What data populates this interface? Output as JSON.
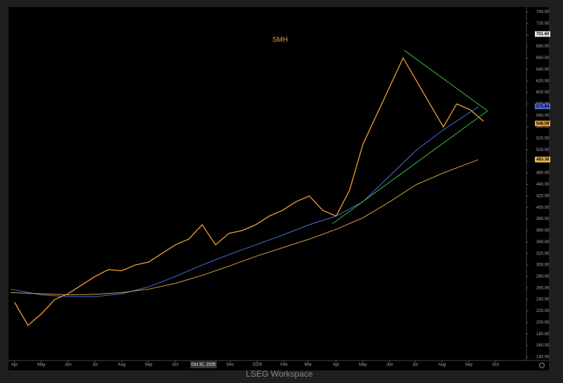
{
  "chart_data": {
    "type": "line",
    "title": "SMH",
    "footer": "LSEG Workspace",
    "xlim": [
      -0.15,
      19.1
    ],
    "ylim": [
      140,
      740
    ],
    "xticks": [
      {
        "value": 0,
        "label": "Apr"
      },
      {
        "value": 1,
        "label": "May"
      },
      {
        "value": 2,
        "label": "Jun"
      },
      {
        "value": 3,
        "label": "Jul"
      },
      {
        "value": 4,
        "label": "Aug"
      },
      {
        "value": 5,
        "label": "Sep"
      },
      {
        "value": 6,
        "label": "Oct"
      },
      {
        "value": 7.05,
        "label": "Oct 31, 2025"
      },
      {
        "value": 8.05,
        "label": "Dec"
      },
      {
        "value": 9.05,
        "label": "2026"
      },
      {
        "value": 10.05,
        "label": "Feb"
      },
      {
        "value": 10.95,
        "label": "Mar"
      },
      {
        "value": 12,
        "label": "Apr"
      },
      {
        "value": 13,
        "label": "May"
      },
      {
        "value": 14,
        "label": "Jun"
      },
      {
        "value": 14.95,
        "label": "Jul"
      },
      {
        "value": 15.95,
        "label": "Aug"
      },
      {
        "value": 16.95,
        "label": "Sep"
      },
      {
        "value": 17.95,
        "label": "Oct"
      }
    ],
    "yticks": [
      {
        "value": 140,
        "label": "140.00"
      },
      {
        "value": 160,
        "label": "160.00"
      },
      {
        "value": 180,
        "label": "180.00"
      },
      {
        "value": 200,
        "label": "200.00"
      },
      {
        "value": 220,
        "label": "220.00"
      },
      {
        "value": 240,
        "label": "240.00"
      },
      {
        "value": 260,
        "label": "260.00"
      },
      {
        "value": 280,
        "label": "280.00"
      },
      {
        "value": 300,
        "label": "300.00"
      },
      {
        "value": 320,
        "label": "320.00"
      },
      {
        "value": 340,
        "label": "340.00"
      },
      {
        "value": 360,
        "label": "360.00"
      },
      {
        "value": 380,
        "label": "380.00"
      },
      {
        "value": 400,
        "label": "400.00"
      },
      {
        "value": 420,
        "label": "420.00"
      },
      {
        "value": 440,
        "label": "440.00"
      },
      {
        "value": 460,
        "label": "460.00"
      },
      {
        "value": 480,
        "label": "480.00"
      },
      {
        "value": 500,
        "label": "500.00"
      },
      {
        "value": 520,
        "label": "520.00"
      },
      {
        "value": 540,
        "label": "540.00"
      },
      {
        "value": 560,
        "label": "560.00"
      },
      {
        "value": 580,
        "label": "580.00"
      },
      {
        "value": 600,
        "label": "600.00"
      },
      {
        "value": 620,
        "label": "620.00"
      },
      {
        "value": 640,
        "label": "640.00"
      },
      {
        "value": 660,
        "label": "660.00"
      },
      {
        "value": 680,
        "label": "680.00"
      },
      {
        "value": 700,
        "label": "700.00"
      },
      {
        "value": 720,
        "label": "720.00"
      },
      {
        "value": 740,
        "label": "740.00"
      }
    ],
    "series": [
      {
        "color": "#f0a030",
        "x": [
          0,
          0.5,
          1,
          1.5,
          2,
          2.5,
          3,
          3.5,
          4,
          4.5,
          5,
          5.5,
          6,
          6.5,
          7,
          7.5,
          8,
          8.5,
          9,
          9.5,
          10,
          10.5,
          11,
          11.5,
          12,
          12.5,
          13,
          13.5,
          14,
          14.5,
          15,
          15.5,
          16,
          16.5,
          17,
          17.5
        ],
        "values": [
          235,
          195,
          215,
          240,
          250,
          265,
          280,
          292,
          290,
          300,
          305,
          320,
          335,
          345,
          370,
          335,
          355,
          360,
          370,
          385,
          395,
          410,
          420,
          395,
          385,
          430,
          510,
          560,
          610,
          660,
          620,
          580,
          540,
          580,
          570,
          550
        ]
      },
      {
        "color": "#4a6ee0",
        "x": [
          -0.15,
          1,
          2,
          3,
          4,
          5,
          6,
          7,
          8,
          9,
          10,
          11,
          12,
          13,
          14,
          15,
          16,
          17.3
        ],
        "values": [
          258,
          248,
          245,
          245,
          250,
          262,
          280,
          300,
          318,
          335,
          352,
          370,
          385,
          410,
          455,
          500,
          535,
          575
        ]
      },
      {
        "color": "#d8a040",
        "x": [
          -0.15,
          1,
          2,
          3,
          4,
          5,
          6,
          7,
          8,
          9,
          10,
          11,
          12,
          13,
          14,
          15,
          16,
          17.3
        ],
        "values": [
          252,
          250,
          248,
          249,
          252,
          258,
          268,
          282,
          298,
          315,
          330,
          345,
          362,
          382,
          410,
          440,
          460,
          483
        ]
      }
    ],
    "trendlines": [
      {
        "color": "#3cc03c",
        "x": [
          14.55,
          17.65
        ],
        "values": [
          673,
          568
        ]
      },
      {
        "color": "#3cc03c",
        "x": [
          11.87,
          17.65
        ],
        "values": [
          372,
          568
        ]
      }
    ],
    "price_tags": [
      {
        "value": 701.6,
        "label": "701.60",
        "color": "#e8e8e8"
      },
      {
        "value": 575.84,
        "label": "575.84",
        "color": "#4a6ee0"
      },
      {
        "value": 546.09,
        "label": "546.09",
        "color": "#f0a030"
      },
      {
        "value": 483.38,
        "label": "483.38",
        "color": "#e8c040"
      }
    ]
  }
}
